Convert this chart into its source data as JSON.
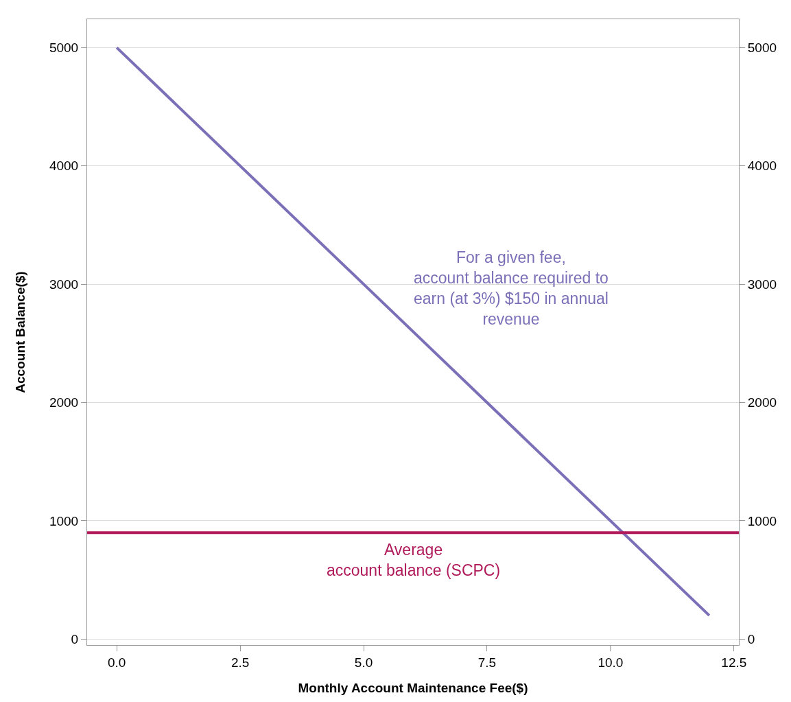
{
  "chart_data": {
    "type": "line",
    "xlabel": "Monthly Account Maintenance Fee($)",
    "ylabel": "Account Balance($)",
    "series": [
      {
        "x": [
          0,
          12
        ],
        "values": [
          5000,
          200
        ],
        "color": "#7b6fb8"
      }
    ],
    "xlim": [
      -0.6,
      12.6
    ],
    "xticks": [
      {
        "value": 0,
        "label": "0.0"
      },
      2.5,
      {
        "value": 5,
        "label": "5.0"
      },
      7.5,
      {
        "value": 10,
        "label": "10.0"
      },
      12.5
    ],
    "ylim": [
      -50,
      5240
    ],
    "yticks": [
      0,
      1000,
      2000,
      3000,
      4000,
      5000
    ],
    "y2lim": [
      -50,
      5240
    ],
    "y2ticks": [
      0,
      1000,
      2000,
      3000,
      4000,
      5000
    ],
    "grid": "y",
    "marker": "none",
    "line_style": "solid",
    "ref_lines": [
      {
        "axis": "y",
        "value": 900,
        "label": "Average\naccount balance (SCPC)",
        "color": "#b01a5a"
      }
    ],
    "annotations": [
      "For a given fee,\naccount balance required to\nearn (at 3%) $150 in annual\nrevenue"
    ]
  }
}
